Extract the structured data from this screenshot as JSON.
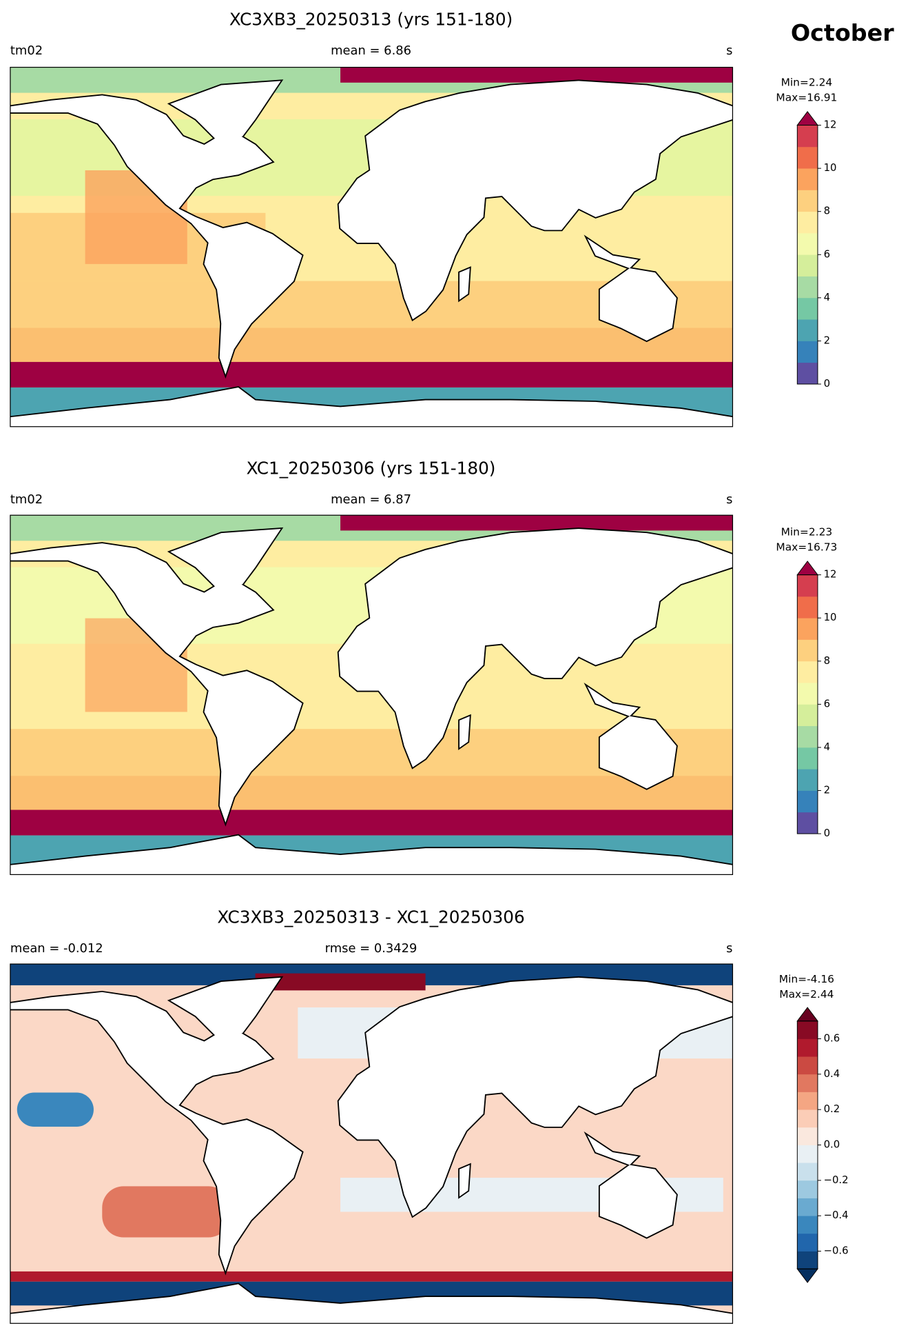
{
  "figure_title": "October",
  "panels": [
    {
      "title": "XC3XB3_20250313 (yrs 151-180)",
      "left": "tm02",
      "center": "mean = 6.86",
      "right": "s",
      "colorbar": {
        "stats": [
          "Min=2.24",
          "Max=16.91"
        ],
        "lim": [
          0,
          12
        ],
        "ticks": [
          0,
          2,
          4,
          6,
          8,
          10,
          12
        ],
        "colors": [
          "#5e4fa2",
          "#3682ba",
          "#4da4b1",
          "#75c8a4",
          "#a7dba4",
          "#d5ee9b",
          "#f3faad",
          "#feeda1",
          "#fdd07f",
          "#fba35e",
          "#f06d4a",
          "#d53e4f"
        ],
        "extend_max_color": "#9e0142"
      }
    },
    {
      "title": "XC1_20250306 (yrs 151-180)",
      "left": "tm02",
      "center": "mean = 6.87",
      "right": "s",
      "colorbar": {
        "stats": [
          "Min=2.23",
          "Max=16.73"
        ],
        "lim": [
          0,
          12
        ],
        "ticks": [
          0,
          2,
          4,
          6,
          8,
          10,
          12
        ],
        "colors": [
          "#5e4fa2",
          "#3682ba",
          "#4da4b1",
          "#75c8a4",
          "#a7dba4",
          "#d5ee9b",
          "#f3faad",
          "#feeda1",
          "#fdd07f",
          "#fba35e",
          "#f06d4a",
          "#d53e4f"
        ],
        "extend_max_color": "#9e0142"
      }
    },
    {
      "title": "XC3XB3_20250313 - XC1_20250306",
      "left": "mean = -0.012",
      "center": "rmse = 0.3429",
      "right": "s",
      "colorbar": {
        "stats": [
          "Min=-4.16",
          "Max=2.44"
        ],
        "lim": [
          -0.7,
          0.7
        ],
        "ticks": [
          {
            "value": -0.6,
            "label": "−0.6"
          },
          {
            "value": -0.4,
            "label": "−0.4"
          },
          {
            "value": -0.2,
            "label": "−0.2"
          },
          {
            "value": 0,
            "label": "0.0"
          },
          0.2,
          0.4,
          0.6
        ],
        "colors": [
          "#0f437b",
          "#2166ac",
          "#3a87bd",
          "#6aaad0",
          "#9dc9e0",
          "#c9e0ec",
          "#e9f0f4",
          "#fae8de",
          "#fbcdb7",
          "#f4a683",
          "#e17860",
          "#cb4a42",
          "#b01a2d",
          "#880a24"
        ],
        "extend_min_color": "#053061",
        "extend_max_color": "#67001f"
      }
    }
  ]
}
